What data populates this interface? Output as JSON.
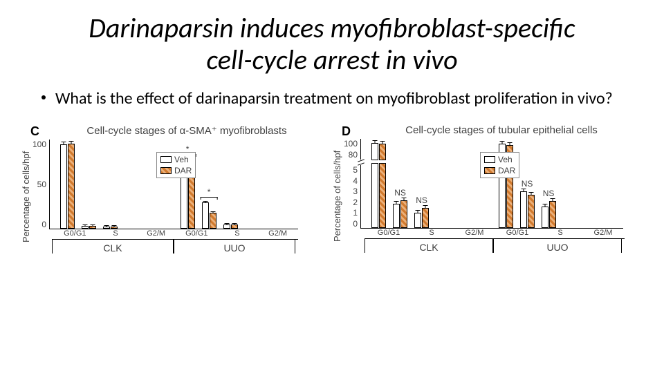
{
  "title_line1": "Darinaparsin induces myofibroblast-specific",
  "title_line2": "cell-cycle arrest in vivo",
  "bullet": "What is the effect of darinaparsin treatment on myofibroblast proliferation in vivo?",
  "legend": {
    "veh": "Veh",
    "dar": "DAR"
  },
  "ylabel": "Percentage of cells/hpf",
  "xcats": [
    "G0/G1",
    "S",
    "G2/M"
  ],
  "big_groups": [
    "CLK",
    "UUO"
  ],
  "sig_star": "*",
  "sig_ns": "NS",
  "panelC": {
    "letter": "C",
    "title": "Cell-cycle stages of α-SMA⁺ myofibroblasts",
    "yticks": [
      "100",
      "50",
      "0"
    ],
    "ymax": 100,
    "data": {
      "CLK": {
        "G0/G1": {
          "veh": 95,
          "dar": 96
        },
        "S": {
          "veh": 3,
          "dar": 3
        },
        "G2/M": {
          "veh": 2,
          "dar": 2
        }
      },
      "UUO": {
        "G0/G1": {
          "veh": 62,
          "dar": 78,
          "sig": "*"
        },
        "S": {
          "veh": 30,
          "dar": 18,
          "sig": "*"
        },
        "G2/M": {
          "veh": 5,
          "dar": 5
        }
      }
    },
    "colors": {
      "veh": "#ffffff",
      "dar_a": "#d17a2e",
      "dar_b": "#ebb07a",
      "border": "#000000"
    }
  },
  "panelD": {
    "letter": "D",
    "title": "Cell-cycle stages of tubular epithelial cells",
    "yticks_upper": [
      "100",
      "80"
    ],
    "yticks_lower": [
      "5",
      "4",
      "3",
      "2",
      "1",
      "0"
    ],
    "data": {
      "CLK": {
        "G0/G1": {
          "veh": 97,
          "dar": 96,
          "upper": true
        },
        "S": {
          "veh": 1.9,
          "dar": 2.2,
          "sig": "NS"
        },
        "G2/M": {
          "veh": 1.2,
          "dar": 1.6,
          "sig": "NS"
        }
      },
      "UUO": {
        "G0/G1": {
          "veh": 96,
          "dar": 95,
          "upper": true
        },
        "S": {
          "veh": 2.9,
          "dar": 2.6,
          "sig": "NS"
        },
        "G2/M": {
          "veh": 1.7,
          "dar": 2.1,
          "sig": "NS"
        }
      }
    }
  }
}
